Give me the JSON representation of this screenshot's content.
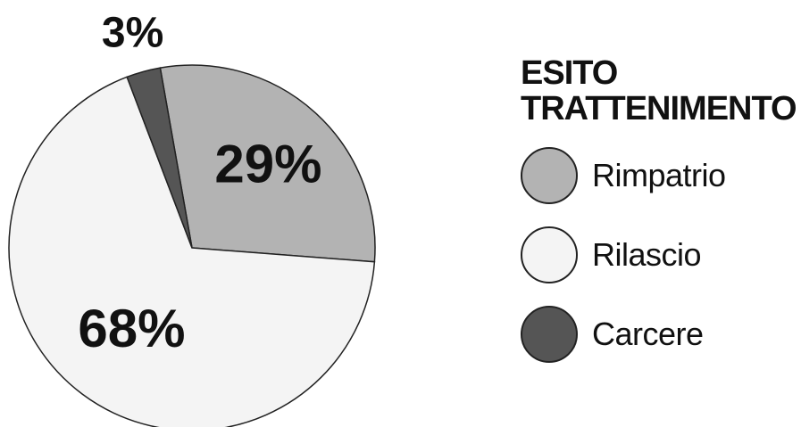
{
  "chart_data": {
    "type": "pie",
    "title": "",
    "legend": {
      "title_lines": [
        "ESITO",
        "TRATTENIMENTO"
      ],
      "placement": "right"
    },
    "slices": [
      {
        "label": "Rimpatrio",
        "value": 29,
        "display": "29%",
        "color": "#b3b3b3"
      },
      {
        "label": "Rilascio",
        "value": 68,
        "display": "68%",
        "color": "#f4f4f4"
      },
      {
        "label": "Carcere",
        "value": 3,
        "display": "3%",
        "color": "#555555"
      }
    ]
  }
}
